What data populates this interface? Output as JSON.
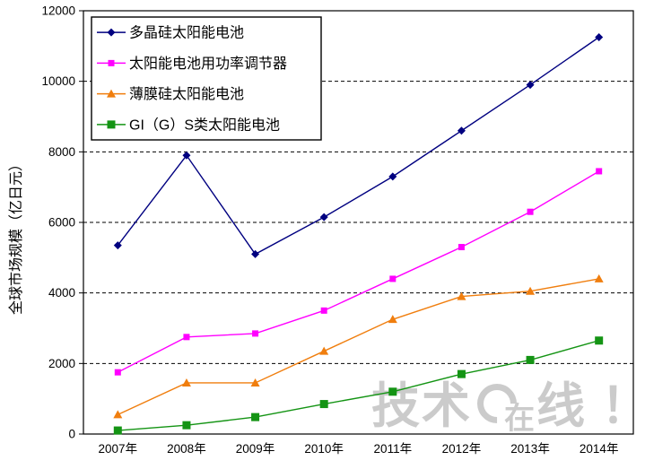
{
  "watermark": {
    "text_1": "技术",
    "text_in_circle": "在",
    "text_2": "线",
    "text_3": "！",
    "color": "#CBCBCB"
  },
  "chart_data": {
    "type": "line",
    "title": "",
    "ylabel": "全球市场规模（亿日元）",
    "xlabel": "",
    "categories": [
      "2007年",
      "2008年",
      "2009年",
      "2010年",
      "2011年",
      "2012年",
      "2013年",
      "2014年"
    ],
    "series": [
      {
        "name": "多晶硅太阳能电池",
        "color": "#000080",
        "marker": "diamond",
        "values": [
          5350,
          7900,
          5100,
          6150,
          7300,
          8600,
          9900,
          11250
        ]
      },
      {
        "name": "太阳能电池用功率调节器",
        "color": "#FF00FF",
        "marker": "square",
        "values": [
          1750,
          2750,
          2850,
          3500,
          4400,
          5300,
          6300,
          7450
        ]
      },
      {
        "name": "薄膜硅太阳能电池",
        "color": "#F07E0E",
        "marker": "triangle",
        "values": [
          550,
          1450,
          1450,
          2350,
          3250,
          3900,
          4050,
          4400
        ]
      },
      {
        "name": "GI（G）S类太阳能电池",
        "color": "#149414",
        "marker": "square-large",
        "values": [
          100,
          250,
          480,
          850,
          1200,
          1700,
          2100,
          2650
        ]
      }
    ],
    "ylim": [
      0,
      12000
    ],
    "yticks": [
      0,
      2000,
      4000,
      6000,
      8000,
      10000,
      12000
    ],
    "grid": "horizontal-dashed",
    "legend_position": "top-left-inside",
    "axis_color": "#000000"
  }
}
